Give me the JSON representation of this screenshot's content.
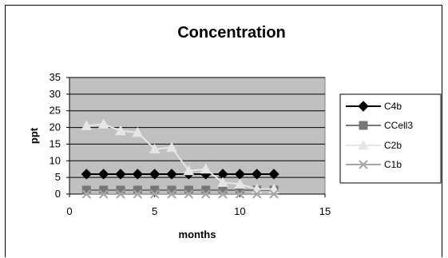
{
  "chart_data": {
    "type": "scatter",
    "title": "Concentration",
    "xlabel": "months",
    "ylabel": "ppt",
    "xlim": [
      0,
      15
    ],
    "ylim": [
      0,
      35
    ],
    "xticks": [
      0,
      5,
      10,
      15
    ],
    "yticks": [
      0,
      5,
      10,
      15,
      20,
      25,
      30,
      35
    ],
    "grid": "horizontal",
    "plot_background": "#c0c0c0",
    "legend": "right",
    "series": [
      {
        "name": "C4b",
        "marker": "diamond",
        "color": "#000000",
        "x": [
          1,
          2,
          3,
          4,
          5,
          6,
          7,
          8,
          9,
          10,
          11,
          12
        ],
        "y": [
          6,
          6,
          6,
          6,
          6,
          6,
          6,
          6,
          6,
          6,
          6,
          6
        ]
      },
      {
        "name": "CCell3",
        "marker": "square",
        "color": "#777777",
        "x": [
          1,
          2,
          3,
          4,
          5,
          6,
          7,
          8,
          9,
          10,
          11,
          12
        ],
        "y": [
          1.2,
          1.2,
          1.2,
          1.2,
          1.2,
          1.2,
          1.2,
          1.2,
          1.2,
          1.2,
          1.2,
          1.2
        ]
      },
      {
        "name": "C2b",
        "marker": "triangle",
        "color": "#e6e6e6",
        "x": [
          1,
          2,
          3,
          4,
          5,
          6,
          7,
          8,
          9,
          10,
          11,
          12
        ],
        "y": [
          20.5,
          21,
          19,
          18.5,
          13.5,
          14,
          7,
          7.5,
          3.5,
          3,
          1.5,
          1.5
        ]
      },
      {
        "name": "C1b",
        "marker": "x",
        "color": "#a6a6a6",
        "x": [
          1,
          2,
          3,
          4,
          5,
          6,
          7,
          8,
          9,
          10,
          11,
          12
        ],
        "y": [
          0,
          0,
          0,
          0,
          0,
          0,
          0,
          0,
          0,
          0,
          0,
          0
        ]
      }
    ]
  }
}
